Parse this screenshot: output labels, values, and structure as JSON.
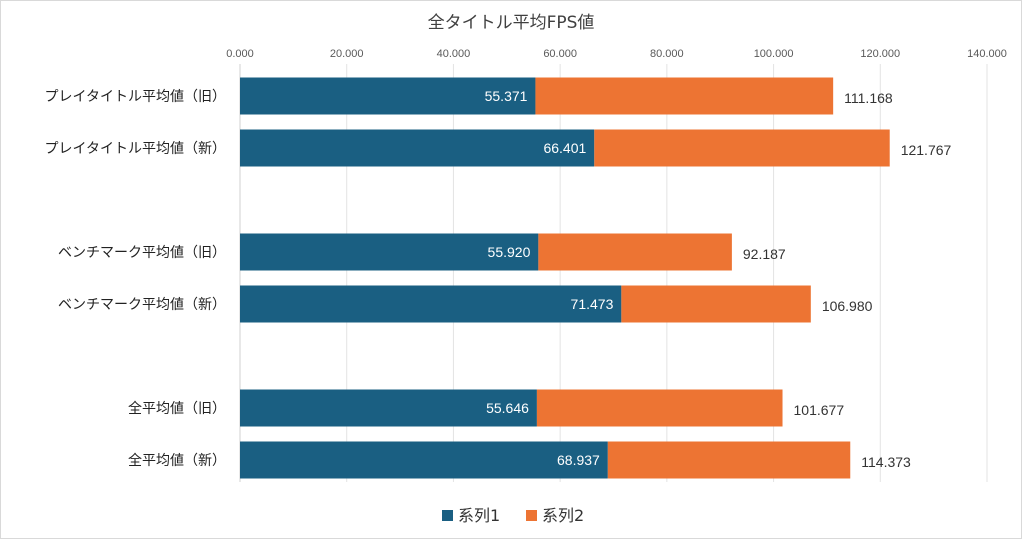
{
  "chart_data": {
    "type": "bar",
    "orientation": "horizontal",
    "stacked": true,
    "title": "全タイトル平均FPS値",
    "x_axis_position": "top",
    "xlim": [
      0,
      140
    ],
    "xticks": [
      "0.000",
      "20.000",
      "40.000",
      "60.000",
      "80.000",
      "100.000",
      "120.000",
      "140.000"
    ],
    "grid": true,
    "legend_position": "bottom",
    "groups": [
      {
        "categories": [
          "プレイタイトル平均値（旧）",
          "プレイタイトル平均値（新）"
        ]
      },
      {
        "categories": [
          "ベンチマーク平均値（旧）",
          "ベンチマーク平均値（新）"
        ]
      },
      {
        "categories": [
          "全平均値（旧）",
          "全平均値（新）"
        ]
      }
    ],
    "categories": [
      "プレイタイトル平均値（旧）",
      "プレイタイトル平均値（新）",
      "ベンチマーク平均値（旧）",
      "ベンチマーク平均値（新）",
      "全平均値（旧）",
      "全平均値（新）"
    ],
    "series": [
      {
        "name": "系列1",
        "color": "#1a5f82",
        "values": [
          55.371,
          66.401,
          55.92,
          71.473,
          55.646,
          68.937
        ],
        "labels": [
          "55.371",
          "66.401",
          "55.920",
          "71.473",
          "55.646",
          "68.937"
        ],
        "label_position": "inside-end"
      },
      {
        "name": "系列2",
        "color": "#ed7433",
        "totals": [
          111.168,
          121.767,
          92.187,
          106.98,
          101.677,
          114.373
        ],
        "labels": [
          "111.168",
          "121.767",
          "92.187",
          "106.980",
          "101.677",
          "114.373"
        ],
        "label_position": "outside-end"
      }
    ]
  }
}
